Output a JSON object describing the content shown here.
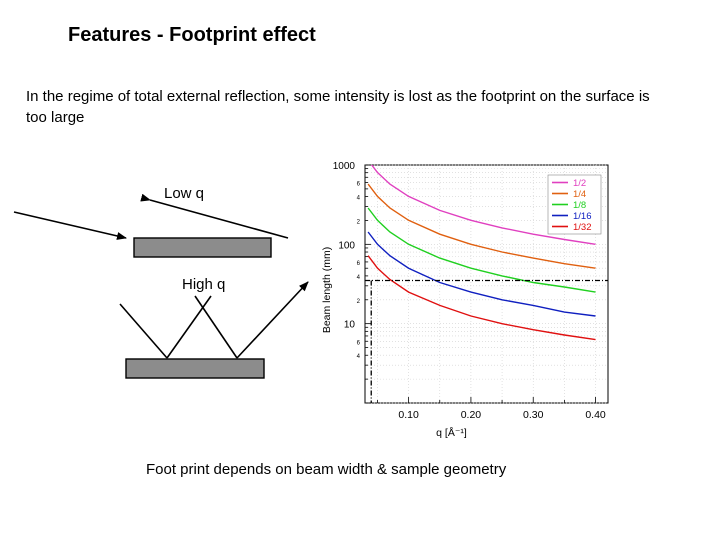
{
  "slide": {
    "title": "Features - Footprint effect",
    "intro": "In the regime of total external reflection, some intensity is lost as the footprint on the surface is too large",
    "diagram": {
      "low_label": "Low q",
      "high_label": "High q"
    },
    "caption": "Foot print depends on beam width & sample geometry"
  },
  "chart_data": {
    "type": "line",
    "xlabel": "q [Å⁻¹]",
    "ylabel": "Beam length (mm)",
    "xlim": [
      0.03,
      0.42
    ],
    "ylim": [
      1,
      1000
    ],
    "y_scale": "log",
    "grid": true,
    "legend_position": "top-right",
    "x_ticks": [
      "0.10",
      "0.20",
      "0.30",
      "0.40"
    ],
    "y_ticks": [
      "1000",
      "100",
      "10"
    ],
    "y_minor_ticks": [
      {
        "value": 600,
        "label": "6"
      },
      {
        "value": 400,
        "label": "4"
      },
      {
        "value": 200,
        "label": "2"
      },
      {
        "value": 60,
        "label": "6"
      },
      {
        "value": 40,
        "label": "4"
      },
      {
        "value": 20,
        "label": "2"
      },
      {
        "value": 6,
        "label": "6"
      },
      {
        "value": 4,
        "label": "4"
      }
    ],
    "x_samples": [
      0.035,
      0.05,
      0.07,
      0.1,
      0.15,
      0.2,
      0.25,
      0.3,
      0.35,
      0.4
    ],
    "series": [
      {
        "name": "1/2",
        "color": "#e040c0",
        "values": [
          1150,
          805,
          575,
          402,
          268,
          201,
          161,
          134,
          115,
          100
        ]
      },
      {
        "name": "1/4",
        "color": "#e06010",
        "values": [
          575,
          402,
          287,
          201,
          134,
          100,
          80,
          67,
          57,
          50
        ]
      },
      {
        "name": "1/8",
        "color": "#20d020",
        "values": [
          287,
          201,
          143,
          100,
          67,
          50,
          40,
          33,
          29,
          25
        ]
      },
      {
        "name": "1/16",
        "color": "#1020c0",
        "values": [
          143,
          100,
          72,
          50,
          33,
          25,
          20,
          17,
          14,
          12.5
        ]
      },
      {
        "name": "1/32",
        "color": "#e01010",
        "values": [
          72,
          50,
          36,
          25,
          17,
          12.5,
          10,
          8.4,
          7.2,
          6.3
        ]
      }
    ],
    "reference_lines": {
      "horizontal_y": 35,
      "vertical_x": 0.04
    }
  }
}
